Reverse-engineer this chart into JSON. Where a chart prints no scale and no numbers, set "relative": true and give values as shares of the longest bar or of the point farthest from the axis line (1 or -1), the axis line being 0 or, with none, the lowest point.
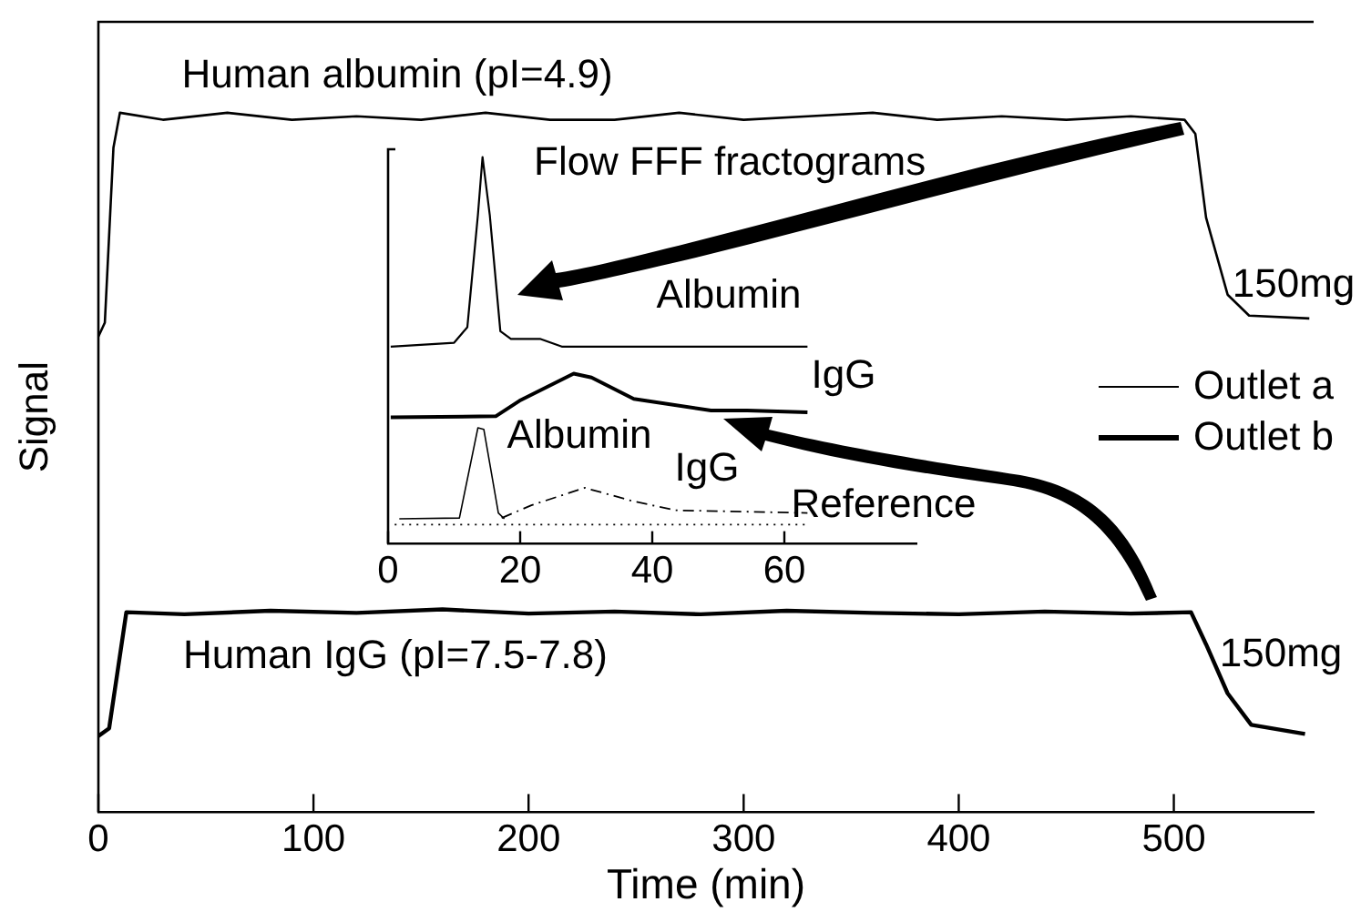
{
  "chart_data": [
    {
      "type": "line",
      "relative": true,
      "xlabel": "Time (min)",
      "ylabel": "Signal",
      "xlim": [
        0,
        565
      ],
      "xticks": [
        0,
        100,
        200,
        300,
        400,
        500
      ],
      "legend": "right",
      "grid": false,
      "marker": "none",
      "series": [
        {
          "name": "Outlet a",
          "color": "#000000",
          "x": [
            0,
            3,
            7,
            10,
            30,
            60,
            90,
            120,
            150,
            180,
            210,
            240,
            270,
            300,
            330,
            360,
            390,
            420,
            450,
            480,
            505,
            510,
            515,
            525,
            535,
            563
          ],
          "values": [
            0.68,
            0.7,
            0.95,
            1.0,
            0.99,
            1.0,
            0.99,
            0.995,
            0.99,
            1.0,
            0.99,
            0.99,
            1.0,
            0.99,
            0.995,
            1.0,
            0.99,
            0.995,
            0.99,
            0.995,
            0.99,
            0.97,
            0.85,
            0.74,
            0.71,
            0.706
          ]
        },
        {
          "name": "Outlet b",
          "color": "#000000",
          "x": [
            0,
            5,
            13,
            40,
            80,
            120,
            160,
            200,
            240,
            280,
            320,
            360,
            400,
            440,
            480,
            508,
            515,
            525,
            536,
            561
          ],
          "values": [
            0.109,
            0.12,
            0.286,
            0.283,
            0.288,
            0.285,
            0.29,
            0.284,
            0.287,
            0.283,
            0.288,
            0.285,
            0.283,
            0.287,
            0.284,
            0.286,
            0.24,
            0.17,
            0.125,
            0.112
          ]
        }
      ],
      "annotations": [
        "Human albumin (pI=4.9)",
        "150mg",
        "Human IgG (pI=7.5-7.8)",
        "150mg"
      ]
    },
    {
      "type": "line",
      "relative": true,
      "title": "Flow FFF fractograms",
      "xlim": [
        0,
        80
      ],
      "xticks": [
        0,
        20,
        40,
        60
      ],
      "grid": false,
      "marker": "none",
      "legend": false,
      "series": [
        {
          "color": "#000000",
          "x": [
            0.4,
            10,
            12,
            13.6,
            14.3,
            15.4,
            17,
            18.6,
            20.3,
            23,
            26.3,
            63.5
          ],
          "values": [
            0.51,
            0.52,
            0.56,
            0.85,
            1.0,
            0.85,
            0.55,
            0.53,
            0.53,
            0.53,
            0.51,
            0.51
          ]
        },
        {
          "color": "#000000",
          "x": [
            0.4,
            16.3,
            19.9,
            28.1,
            30.8,
            37.2,
            48.9,
            54.4,
            63.5
          ],
          "values": [
            0.327,
            0.33,
            0.37,
            0.44,
            0.43,
            0.375,
            0.345,
            0.345,
            0.34
          ]
        },
        {
          "color": "#000000",
          "x": [
            1.7,
            10.8,
            13.6,
            14.5,
            16.7,
            17.6
          ],
          "values": [
            0.065,
            0.067,
            0.3,
            0.296,
            0.08,
            0.065
          ]
        },
        {
          "color": "#000000",
          "line_style": "dashed",
          "x": [
            17.2,
            21.7,
            29.8,
            37.2,
            43.5,
            63.5
          ],
          "values": [
            0.067,
            0.1,
            0.145,
            0.11,
            0.087,
            0.08
          ]
        },
        {
          "color": "#000000",
          "line_style": "dotted",
          "x": [
            1,
            63.5
          ],
          "values": [
            0.05,
            0.05
          ]
        }
      ],
      "annotations": [
        "Albumin",
        "IgG",
        "Albumin",
        "IgG",
        "Reference"
      ]
    }
  ]
}
